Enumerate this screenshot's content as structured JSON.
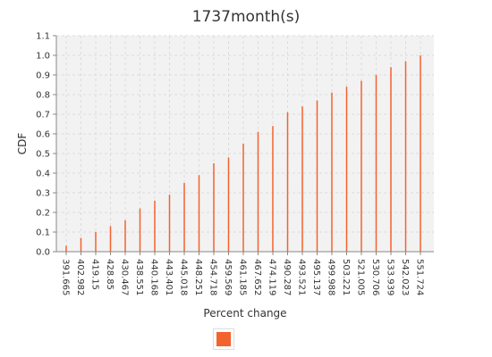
{
  "chart_data": {
    "type": "bar",
    "title": "1737month(s)",
    "xlabel": "Percent change",
    "ylabel": "CDF",
    "ylim": [
      0,
      1.1
    ],
    "yticks": [
      "0.0",
      "0.1",
      "0.2",
      "0.3",
      "0.4",
      "0.5",
      "0.6",
      "0.7",
      "0.8",
      "0.9",
      "1.0",
      "1.1"
    ],
    "categories": [
      "391.665",
      "402.982",
      "419.15",
      "428.85",
      "430.467",
      "438.551",
      "440.168",
      "443.401",
      "445.018",
      "448.251",
      "454.718",
      "459.569",
      "461.185",
      "467.652",
      "474.119",
      "490.287",
      "493.521",
      "495.137",
      "499.988",
      "503.221",
      "521.005",
      "530.706",
      "533.939",
      "542.023",
      "551.724"
    ],
    "series": [
      {
        "color": "#f4622e",
        "values": [
          0.03,
          0.07,
          0.1,
          0.13,
          0.16,
          0.22,
          0.26,
          0.29,
          0.35,
          0.39,
          0.45,
          0.48,
          0.55,
          0.61,
          0.64,
          0.71,
          0.74,
          0.77,
          0.81,
          0.84,
          0.87,
          0.9,
          0.94,
          0.97,
          1.0
        ]
      }
    ],
    "grid": true,
    "legend": "bottom-center"
  },
  "colors": {
    "plot_background": "#f2f2f2",
    "grid": "#dcdcdc",
    "bar": "#f4622e"
  }
}
